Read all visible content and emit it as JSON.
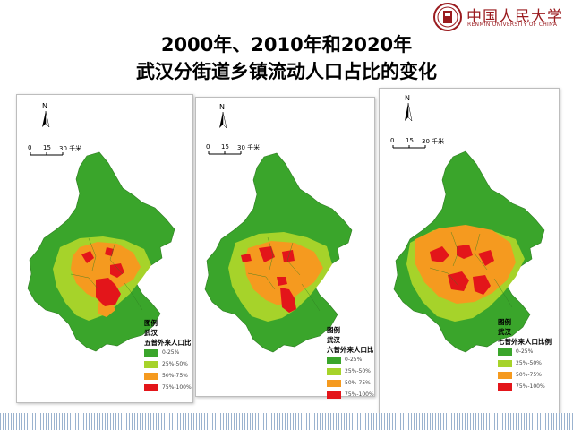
{
  "header": {
    "logo_text": "中国人民大学",
    "logo_sub": "RENMIN UNIVERSITY OF CHINA",
    "title_line1": "2000年、2010年和2020年",
    "title_line2": "武汉分街道乡镇流动人口占比的变化"
  },
  "colors": {
    "class1": "#3aa52b",
    "class2": "#a6d32a",
    "class3": "#f59a1f",
    "class4": "#e3151a",
    "accent": "#9a1b1f"
  },
  "maps": [
    {
      "north": "N",
      "scale": {
        "t0": "0",
        "t1": "15",
        "t2": "30 千米"
      },
      "legend_title": "图例",
      "legend_region": "武汉",
      "legend_subtitle": "五普外来人口比",
      "classes": [
        "0-25%",
        "25%-50%",
        "50%-75%",
        "75%-100%"
      ]
    },
    {
      "north": "N",
      "scale": {
        "t0": "0",
        "t1": "15",
        "t2": "30 千米"
      },
      "legend_title": "图例",
      "legend_region": "武汉",
      "legend_subtitle": "六普外来人口比例",
      "classes": [
        "0-25%",
        "25%-50%",
        "50%-75%",
        "75%-100%"
      ]
    },
    {
      "north": "N",
      "scale": {
        "t0": "0",
        "t1": "15",
        "t2": "30 千米"
      },
      "legend_title": "图例",
      "legend_region": "武汉",
      "legend_subtitle": "七普外来人口比例",
      "classes": [
        "0-25%",
        "25%-50%",
        "50%-75%",
        "75%-100%"
      ]
    }
  ]
}
